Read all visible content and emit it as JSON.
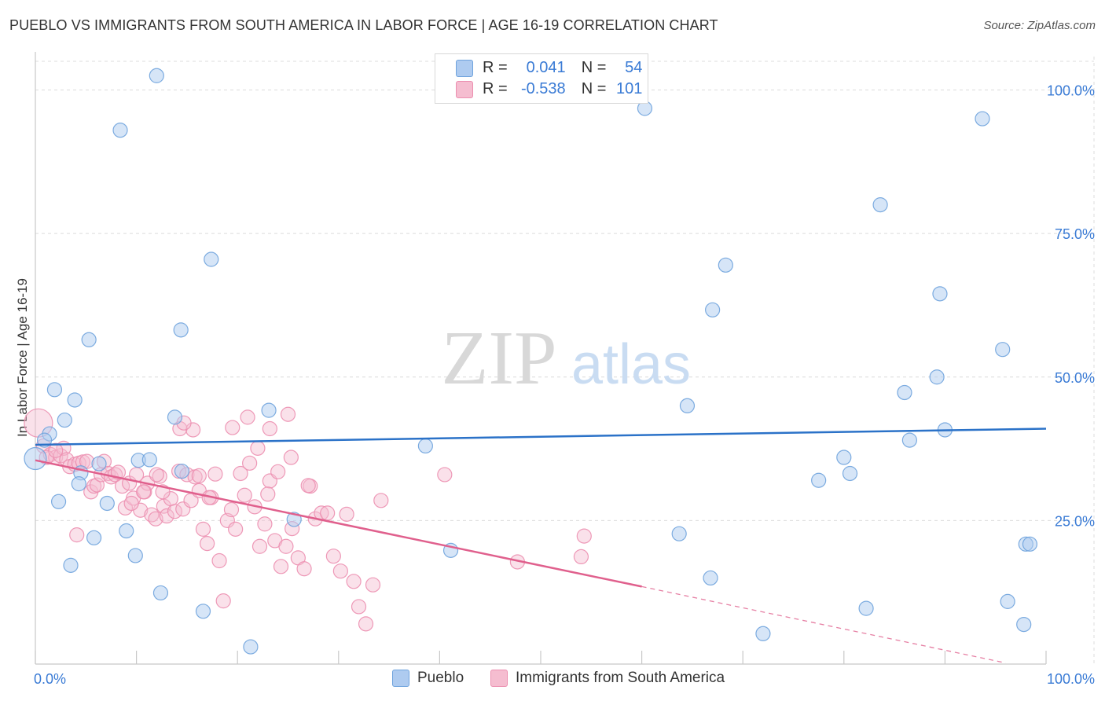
{
  "title": "PUEBLO VS IMMIGRANTS FROM SOUTH AMERICA IN LABOR FORCE | AGE 16-19 CORRELATION CHART",
  "source": "Source: ZipAtlas.com",
  "watermark": {
    "zip": "ZIP",
    "atlas": "atlas"
  },
  "colors": {
    "blue": "#6fa3dd",
    "blue_fill": "#aecbf0",
    "blue_line": "#2b72c8",
    "pink": "#ec8fb0",
    "pink_fill": "#f5bdd0",
    "pink_line": "#e0608d",
    "value_text": "#3a7bd5",
    "grid": "#dcdcdc"
  },
  "legend": {
    "rows": [
      {
        "r_label": "R =",
        "r_value": "0.041",
        "n_label": "N =",
        "n_value": "54"
      },
      {
        "r_label": "R =",
        "r_value": "-0.538",
        "n_label": "N =",
        "n_value": "101"
      }
    ]
  },
  "bottom_legend": {
    "pueblo": "Pueblo",
    "immigrants": "Immigrants from South America"
  },
  "chart_data": {
    "type": "scatter",
    "title": "PUEBLO VS IMMIGRANTS FROM SOUTH AMERICA IN LABOR FORCE | AGE 16-19 CORRELATION CHART",
    "xlabel": "",
    "ylabel": "In Labor Force | Age 16-19",
    "xlim": [
      0,
      100
    ],
    "ylim": [
      0,
      105
    ],
    "x_tick_labels": [
      "0.0%",
      "100.0%"
    ],
    "y_ticks": [
      25,
      50,
      75,
      100
    ],
    "y_tick_labels": [
      "25.0%",
      "50.0%",
      "75.0%",
      "100.0%"
    ],
    "grid": true,
    "series": [
      {
        "name": "Pueblo",
        "R": 0.041,
        "N": 54,
        "trend": {
          "x0": 0,
          "y0": 38.2,
          "x1": 100,
          "y1": 41.0
        },
        "points": [
          [
            12.0,
            102.5
          ],
          [
            8.4,
            93.0
          ],
          [
            60.3,
            96.8
          ],
          [
            93.7,
            95.0
          ],
          [
            83.6,
            80.0
          ],
          [
            17.4,
            70.5
          ],
          [
            68.3,
            69.5
          ],
          [
            89.5,
            64.5
          ],
          [
            67.0,
            61.7
          ],
          [
            14.4,
            58.2
          ],
          [
            5.3,
            56.5
          ],
          [
            95.7,
            54.8
          ],
          [
            89.2,
            50.0
          ],
          [
            86.0,
            47.3
          ],
          [
            1.9,
            47.8
          ],
          [
            3.9,
            46.0
          ],
          [
            64.5,
            45.0
          ],
          [
            23.1,
            44.2
          ],
          [
            13.8,
            43.0
          ],
          [
            2.9,
            42.5
          ],
          [
            1.4,
            40.1
          ],
          [
            90.0,
            40.8
          ],
          [
            86.5,
            39.0
          ],
          [
            0.9,
            39.0
          ],
          [
            38.6,
            38.0
          ],
          [
            80.0,
            36.0
          ],
          [
            10.2,
            35.5
          ],
          [
            11.3,
            35.6
          ],
          [
            6.3,
            34.9
          ],
          [
            14.5,
            33.6
          ],
          [
            4.5,
            33.3
          ],
          [
            80.6,
            33.2
          ],
          [
            77.5,
            32.0
          ],
          [
            4.3,
            31.4
          ],
          [
            2.3,
            28.3
          ],
          [
            7.1,
            28.0
          ],
          [
            25.6,
            25.2
          ],
          [
            9.0,
            23.2
          ],
          [
            63.7,
            22.7
          ],
          [
            5.8,
            22.0
          ],
          [
            98.0,
            20.9
          ],
          [
            98.4,
            20.9
          ],
          [
            41.1,
            19.8
          ],
          [
            9.9,
            18.9
          ],
          [
            3.5,
            17.2
          ],
          [
            66.8,
            15.0
          ],
          [
            12.4,
            12.4
          ],
          [
            96.2,
            10.9
          ],
          [
            82.2,
            9.7
          ],
          [
            16.6,
            9.2
          ],
          [
            72.0,
            5.3
          ],
          [
            97.8,
            6.9
          ],
          [
            21.3,
            3.0
          ],
          [
            0.0,
            35.8
          ]
        ]
      },
      {
        "name": "Immigrants from South America",
        "R": -0.538,
        "N": 101,
        "trend": {
          "x0": 0,
          "y0": 35.5,
          "x1": 60,
          "y1": 13.5
        },
        "trend_dashed": {
          "x0": 60,
          "y0": 13.5,
          "x1": 96,
          "y1": 0.2
        },
        "points": [
          [
            0.3,
            42.0
          ],
          [
            0.8,
            38.0
          ],
          [
            1.5,
            36.5
          ],
          [
            2.0,
            36.0
          ],
          [
            2.5,
            36.3
          ],
          [
            2.8,
            37.6
          ],
          [
            3.1,
            35.6
          ],
          [
            3.4,
            34.4
          ],
          [
            3.9,
            34.8
          ],
          [
            4.3,
            35.0
          ],
          [
            4.7,
            35.2
          ],
          [
            5.1,
            35.3
          ],
          [
            5.5,
            30.0
          ],
          [
            5.8,
            31.0
          ],
          [
            6.1,
            31.2
          ],
          [
            6.5,
            33.0
          ],
          [
            6.8,
            35.3
          ],
          [
            7.2,
            33.2
          ],
          [
            7.5,
            32.6
          ],
          [
            7.9,
            33.0
          ],
          [
            8.2,
            33.4
          ],
          [
            8.6,
            31.0
          ],
          [
            8.9,
            27.2
          ],
          [
            9.3,
            31.5
          ],
          [
            9.7,
            28.9
          ],
          [
            10.0,
            33.0
          ],
          [
            10.4,
            26.8
          ],
          [
            10.8,
            30.0
          ],
          [
            11.1,
            31.5
          ],
          [
            11.5,
            26.0
          ],
          [
            11.9,
            25.3
          ],
          [
            12.3,
            32.7
          ],
          [
            12.7,
            27.5
          ],
          [
            13.0,
            25.8
          ],
          [
            13.4,
            28.8
          ],
          [
            13.8,
            26.6
          ],
          [
            14.2,
            33.6
          ],
          [
            14.6,
            27.0
          ],
          [
            15.0,
            33.0
          ],
          [
            15.4,
            28.5
          ],
          [
            15.8,
            32.6
          ],
          [
            16.2,
            30.2
          ],
          [
            16.6,
            23.5
          ],
          [
            17.0,
            21.0
          ],
          [
            17.4,
            29.0
          ],
          [
            17.8,
            33.1
          ],
          [
            18.2,
            18.0
          ],
          [
            18.6,
            11.0
          ],
          [
            19.0,
            25.0
          ],
          [
            19.4,
            26.9
          ],
          [
            19.8,
            23.5
          ],
          [
            20.3,
            33.2
          ],
          [
            20.7,
            29.4
          ],
          [
            21.2,
            35.0
          ],
          [
            21.7,
            27.4
          ],
          [
            22.2,
            20.5
          ],
          [
            22.7,
            24.4
          ],
          [
            23.2,
            31.9
          ],
          [
            23.7,
            21.5
          ],
          [
            24.3,
            17.0
          ],
          [
            24.8,
            20.5
          ],
          [
            25.4,
            23.6
          ],
          [
            26.0,
            18.5
          ],
          [
            26.6,
            16.6
          ],
          [
            27.2,
            31.0
          ],
          [
            27.7,
            25.3
          ],
          [
            28.3,
            26.3
          ],
          [
            28.9,
            26.3
          ],
          [
            29.5,
            18.8
          ],
          [
            30.2,
            16.2
          ],
          [
            30.8,
            26.1
          ],
          [
            31.5,
            14.4
          ],
          [
            32.0,
            10.0
          ],
          [
            32.7,
            7.0
          ],
          [
            33.4,
            13.8
          ],
          [
            34.2,
            28.5
          ],
          [
            23.2,
            41.0
          ],
          [
            21.0,
            43.0
          ],
          [
            25.0,
            43.5
          ],
          [
            15.6,
            40.8
          ],
          [
            14.3,
            41.0
          ],
          [
            14.7,
            42.0
          ],
          [
            19.5,
            41.2
          ],
          [
            22.0,
            37.6
          ],
          [
            25.3,
            36.0
          ],
          [
            24.0,
            33.5
          ],
          [
            23.0,
            29.6
          ],
          [
            27.0,
            31.1
          ],
          [
            17.2,
            29.0
          ],
          [
            16.2,
            32.8
          ],
          [
            12.0,
            33.0
          ],
          [
            10.7,
            30.0
          ],
          [
            9.5,
            28.0
          ],
          [
            12.6,
            30.0
          ],
          [
            40.5,
            33.0
          ],
          [
            47.7,
            17.8
          ],
          [
            54.3,
            22.3
          ],
          [
            54.0,
            18.7
          ],
          [
            1.1,
            36.0
          ],
          [
            2.0,
            37.2
          ],
          [
            4.1,
            22.5
          ]
        ]
      }
    ]
  }
}
